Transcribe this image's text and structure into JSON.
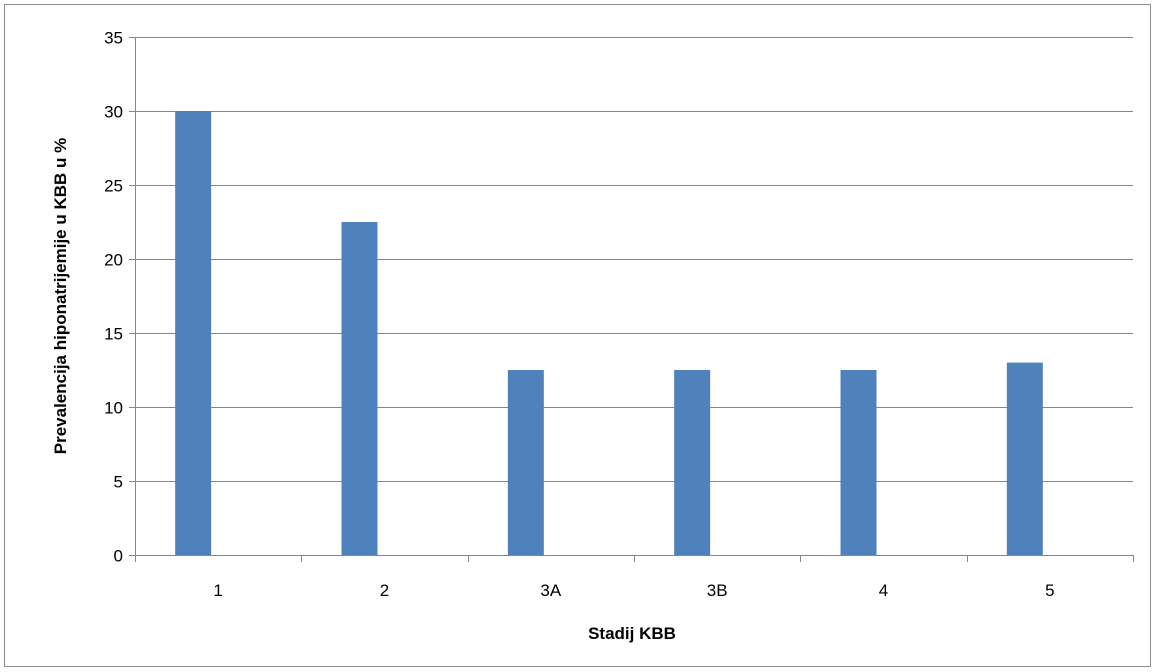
{
  "chart_data": {
    "type": "bar",
    "categories": [
      "1",
      "2",
      "3A",
      "3B",
      "4",
      "5"
    ],
    "values": [
      30,
      22.5,
      12.5,
      12.5,
      12.5,
      13
    ],
    "title": "",
    "xlabel": "Stadij KBB",
    "ylabel": "Prevalencija hiponatrijemije u KBB u %",
    "ylim": [
      0,
      35
    ],
    "yticks": [
      0,
      5,
      10,
      15,
      20,
      25,
      30,
      35
    ],
    "grid": true,
    "legend": "none",
    "bar_color": "#4f81bd"
  }
}
